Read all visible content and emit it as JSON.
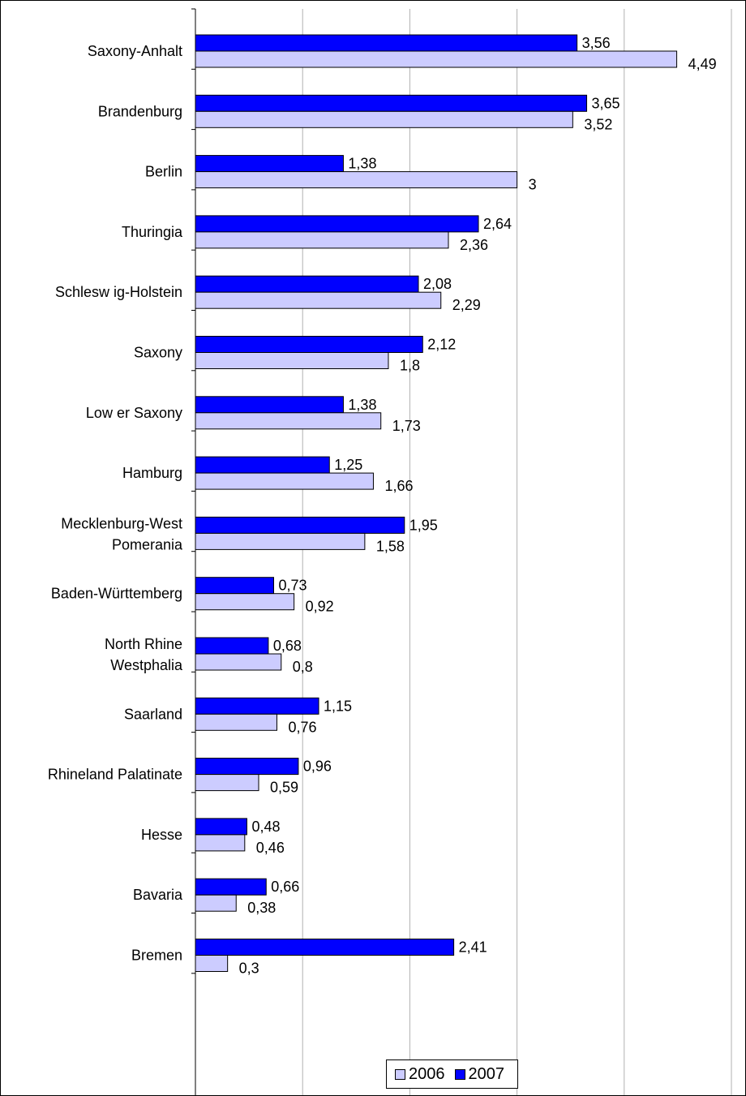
{
  "chart_data": {
    "type": "bar",
    "orientation": "horizontal",
    "categories": [
      "Saxony-Anhalt",
      "Brandenburg",
      "Berlin",
      "Thuringia",
      "Schlesw ig-Holstein",
      "Saxony",
      "Low er Saxony",
      "Hamburg",
      "Mecklenburg-West Pomerania",
      "Baden-Württemberg",
      "North Rhine Westphalia",
      "Saarland",
      "Rhineland Palatinate",
      "Hesse",
      "Bavaria",
      "Bremen"
    ],
    "category_lines": [
      [
        "Saxony-Anhalt"
      ],
      [
        "Brandenburg"
      ],
      [
        "Berlin"
      ],
      [
        "Thuringia"
      ],
      [
        "Schlesw ig-Holstein"
      ],
      [
        "Saxony"
      ],
      [
        "Low er Saxony"
      ],
      [
        "Hamburg"
      ],
      [
        "Mecklenburg-West",
        "Pomerania"
      ],
      [
        "Baden-Württemberg"
      ],
      [
        "North Rhine",
        "Westphalia"
      ],
      [
        "Saarland"
      ],
      [
        "Rhineland Palatinate"
      ],
      [
        "Hesse"
      ],
      [
        "Bavaria"
      ],
      [
        "Bremen"
      ]
    ],
    "series": [
      {
        "name": "2007",
        "color": "#0000ff",
        "values": [
          3.56,
          3.65,
          1.38,
          2.64,
          2.08,
          2.12,
          1.38,
          1.25,
          1.95,
          0.73,
          0.68,
          1.15,
          0.96,
          0.48,
          0.66,
          2.41
        ],
        "labels": [
          "3,56",
          "3,65",
          "1,38",
          "2,64",
          "2,08",
          "2,12",
          "1,38",
          "1,25",
          "1,95",
          "0,73",
          "0,68",
          "1,15",
          "0,96",
          "0,48",
          "0,66",
          "2,41"
        ]
      },
      {
        "name": "2006",
        "color": "#ccccff",
        "values": [
          4.49,
          3.52,
          3,
          2.36,
          2.29,
          1.8,
          1.73,
          1.66,
          1.58,
          0.92,
          0.8,
          0.76,
          0.59,
          0.46,
          0.38,
          0.3
        ],
        "labels": [
          "4,49",
          "3,52",
          "3",
          "2,36",
          "2,29",
          "1,8",
          "1,73",
          "1,66",
          "1,58",
          "0,92",
          "0,8",
          "0,76",
          "0,59",
          "0,46",
          "0,38",
          "0,3"
        ]
      }
    ],
    "xlim": [
      0,
      5
    ],
    "xticks": [
      "0",
      "1",
      "2",
      "3",
      "4",
      "5"
    ],
    "grid": "vertical",
    "legend": {
      "position": "bottom",
      "entries": [
        {
          "name": "2006",
          "color": "#ccccff"
        },
        {
          "name": "2007",
          "color": "#0000ff"
        }
      ]
    },
    "title": "",
    "xlabel": "",
    "ylabel": ""
  }
}
